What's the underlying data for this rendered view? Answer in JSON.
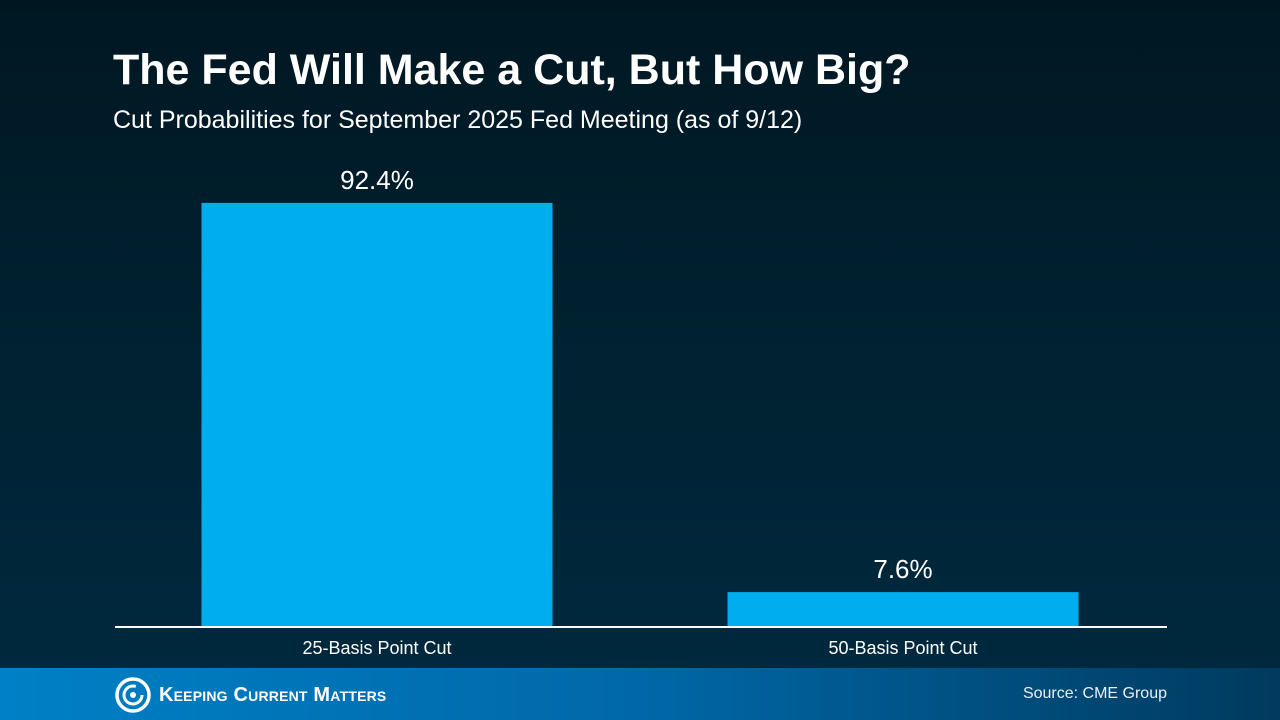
{
  "header": {
    "title": "The Fed Will Make a Cut, But How Big?",
    "subtitle": "Cut Probabilities for September 2025 Fed Meeting (as of 9/12)"
  },
  "chart_data": {
    "type": "bar",
    "title": "The Fed Will Make a Cut, But How Big?",
    "subtitle": "Cut Probabilities for September 2025 Fed Meeting (as of 9/12)",
    "categories": [
      "25-Basis Point Cut",
      "50-Basis Point Cut"
    ],
    "values": [
      92.4,
      7.6
    ],
    "data_labels": [
      "92.4%",
      "7.6%"
    ],
    "unit": "%",
    "ylim": [
      0,
      100
    ],
    "grid": false,
    "bar_color": "#00aeef"
  },
  "footer": {
    "logo_text": "Keeping Current Matters",
    "source": "Source: CME Group"
  }
}
